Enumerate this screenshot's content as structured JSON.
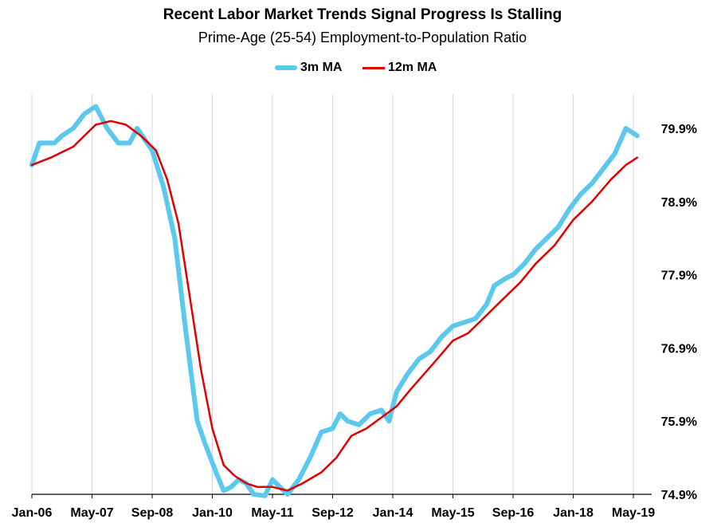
{
  "chart_data": {
    "type": "line",
    "title": "Recent Labor Market Trends Signal Progress Is Stalling",
    "subtitle": "Prime-Age (25-54) Employment-to-Population Ratio",
    "x_tick_labels": [
      "Jan-06",
      "May-07",
      "Sep-08",
      "Jan-10",
      "May-11",
      "Sep-12",
      "Jan-14",
      "May-15",
      "Sep-16",
      "Jan-18",
      "May-19"
    ],
    "y_tick_labels": [
      "79.9%",
      "78.9%",
      "77.9%",
      "76.9%",
      "75.9%",
      "74.9%"
    ],
    "y_ticks": [
      79.9,
      78.9,
      77.9,
      76.9,
      75.9,
      74.9
    ],
    "ylim": [
      74.9,
      80.4
    ],
    "x_range": [
      "Jan-06",
      "Jun-19"
    ],
    "grid": "vertical",
    "legend_position": "top-center",
    "series": [
      {
        "name": "3m MA",
        "color": "#5BC8EE",
        "points": [
          [
            "Jan-06",
            79.4
          ],
          [
            "Mar-06",
            79.7
          ],
          [
            "Jul-06",
            79.7
          ],
          [
            "Sep-06",
            79.8
          ],
          [
            "Dec-06",
            79.9
          ],
          [
            "Mar-07",
            80.1
          ],
          [
            "Jun-07",
            80.2
          ],
          [
            "Sep-07",
            79.9
          ],
          [
            "Dec-07",
            79.7
          ],
          [
            "Mar-08",
            79.7
          ],
          [
            "May-08",
            79.9
          ],
          [
            "Sep-08",
            79.6
          ],
          [
            "Dec-08",
            79.1
          ],
          [
            "Mar-09",
            78.4
          ],
          [
            "Jun-09",
            77.1
          ],
          [
            "Sep-09",
            75.9
          ],
          [
            "Nov-09",
            75.6
          ],
          [
            "Feb-10",
            75.2
          ],
          [
            "Apr-10",
            74.95
          ],
          [
            "Jun-10",
            75.0
          ],
          [
            "Aug-10",
            75.1
          ],
          [
            "Oct-10",
            75.05
          ],
          [
            "Dec-10",
            74.9
          ],
          [
            "Mar-11",
            74.88
          ],
          [
            "May-11",
            75.1
          ],
          [
            "Jul-11",
            75.0
          ],
          [
            "Sep-11",
            74.9
          ],
          [
            "Dec-11",
            75.1
          ],
          [
            "Mar-12",
            75.4
          ],
          [
            "Jun-12",
            75.75
          ],
          [
            "Sep-12",
            75.8
          ],
          [
            "Nov-12",
            76.0
          ],
          [
            "Jan-13",
            75.9
          ],
          [
            "Apr-13",
            75.85
          ],
          [
            "Jul-13",
            76.0
          ],
          [
            "Oct-13",
            76.05
          ],
          [
            "Dec-13",
            75.9
          ],
          [
            "Feb-14",
            76.3
          ],
          [
            "May-14",
            76.55
          ],
          [
            "Aug-14",
            76.75
          ],
          [
            "Nov-14",
            76.85
          ],
          [
            "Feb-15",
            77.05
          ],
          [
            "May-15",
            77.2
          ],
          [
            "Aug-15",
            77.25
          ],
          [
            "Nov-15",
            77.3
          ],
          [
            "Feb-16",
            77.5
          ],
          [
            "Apr-16",
            77.75
          ],
          [
            "Jul-16",
            77.85
          ],
          [
            "Sep-16",
            77.9
          ],
          [
            "Dec-16",
            78.05
          ],
          [
            "Mar-17",
            78.25
          ],
          [
            "Jun-17",
            78.4
          ],
          [
            "Sep-17",
            78.55
          ],
          [
            "Dec-17",
            78.8
          ],
          [
            "Mar-18",
            79.0
          ],
          [
            "Jun-18",
            79.15
          ],
          [
            "Sep-18",
            79.35
          ],
          [
            "Dec-18",
            79.55
          ],
          [
            "Mar-19",
            79.9
          ],
          [
            "Jun-19",
            79.8
          ]
        ]
      },
      {
        "name": "12m MA",
        "color": "#E00000",
        "points": [
          [
            "Jan-06",
            79.4
          ],
          [
            "Jun-06",
            79.5
          ],
          [
            "Dec-06",
            79.65
          ],
          [
            "Jun-07",
            79.95
          ],
          [
            "Oct-07",
            80.0
          ],
          [
            "Feb-08",
            79.95
          ],
          [
            "Jun-08",
            79.8
          ],
          [
            "Oct-08",
            79.6
          ],
          [
            "Jan-09",
            79.2
          ],
          [
            "Apr-09",
            78.6
          ],
          [
            "Jul-09",
            77.6
          ],
          [
            "Oct-09",
            76.6
          ],
          [
            "Jan-10",
            75.8
          ],
          [
            "Apr-10",
            75.3
          ],
          [
            "Jul-10",
            75.15
          ],
          [
            "Oct-10",
            75.05
          ],
          [
            "Jan-11",
            75.0
          ],
          [
            "May-11",
            75.0
          ],
          [
            "Sep-11",
            74.95
          ],
          [
            "Jan-12",
            75.05
          ],
          [
            "Jun-12",
            75.2
          ],
          [
            "Oct-12",
            75.4
          ],
          [
            "Feb-13",
            75.7
          ],
          [
            "Jun-13",
            75.8
          ],
          [
            "Oct-13",
            75.95
          ],
          [
            "Feb-14",
            76.1
          ],
          [
            "Jun-14",
            76.35
          ],
          [
            "Dec-14",
            76.7
          ],
          [
            "May-15",
            77.0
          ],
          [
            "Sep-15",
            77.1
          ],
          [
            "Feb-16",
            77.35
          ],
          [
            "Jun-16",
            77.55
          ],
          [
            "Nov-16",
            77.8
          ],
          [
            "Mar-17",
            78.05
          ],
          [
            "Aug-17",
            78.3
          ],
          [
            "Jan-18",
            78.65
          ],
          [
            "Jun-18",
            78.9
          ],
          [
            "Nov-18",
            79.2
          ],
          [
            "Mar-19",
            79.4
          ],
          [
            "Jun-19",
            79.5
          ]
        ]
      }
    ]
  }
}
